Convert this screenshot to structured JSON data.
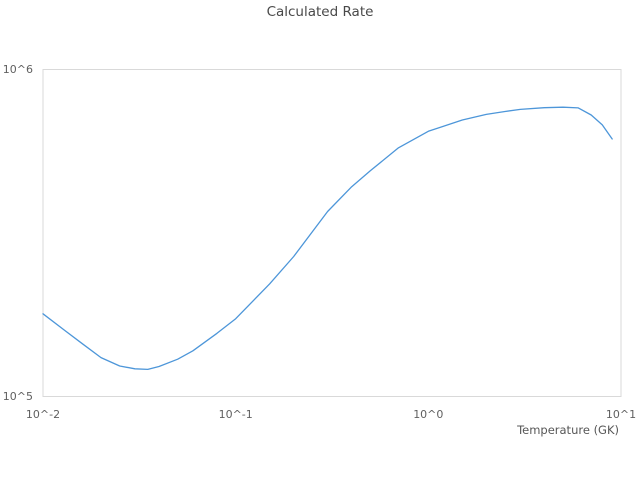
{
  "title": "Calculated Rate",
  "colors": {
    "line": "#4d96d9",
    "plot_border": "#d9d9d9",
    "title_text": "#494949",
    "tick_text": "#606060"
  },
  "chart_data": {
    "type": "line",
    "title": "Calculated Rate",
    "xlabel": "Temperature (GK)",
    "ylabel": "",
    "x_scale": "log",
    "y_scale": "log",
    "xlim": [
      0.01,
      10
    ],
    "ylim": [
      100000,
      1000000
    ],
    "x_ticks": [
      0.01,
      0.1,
      1,
      10
    ],
    "x_tick_labels": [
      "10^-2",
      "10^-1",
      "10^0",
      "10^1"
    ],
    "y_ticks": [
      100000,
      1000000
    ],
    "y_tick_labels": [
      "10^5",
      "10^6"
    ],
    "grid": false,
    "legend": false,
    "series": [
      {
        "name": "Calculated Rate",
        "x": [
          0.01,
          0.013,
          0.016,
          0.02,
          0.025,
          0.03,
          0.035,
          0.04,
          0.05,
          0.06,
          0.08,
          0.1,
          0.15,
          0.2,
          0.3,
          0.4,
          0.5,
          0.7,
          1.0,
          1.5,
          2.0,
          2.5,
          3.0,
          4.0,
          5.0,
          6.0,
          7.0,
          8.0,
          9.0
        ],
        "y": [
          179000,
          159000,
          145000,
          131500,
          124000,
          121500,
          121000,
          123500,
          130000,
          138000,
          156000,
          173000,
          221000,
          268000,
          368000,
          438000,
          490000,
          576000,
          647000,
          701000,
          729000,
          744000,
          755000,
          764000,
          767000,
          763000,
          726000,
          677000,
          613000
        ]
      }
    ]
  }
}
